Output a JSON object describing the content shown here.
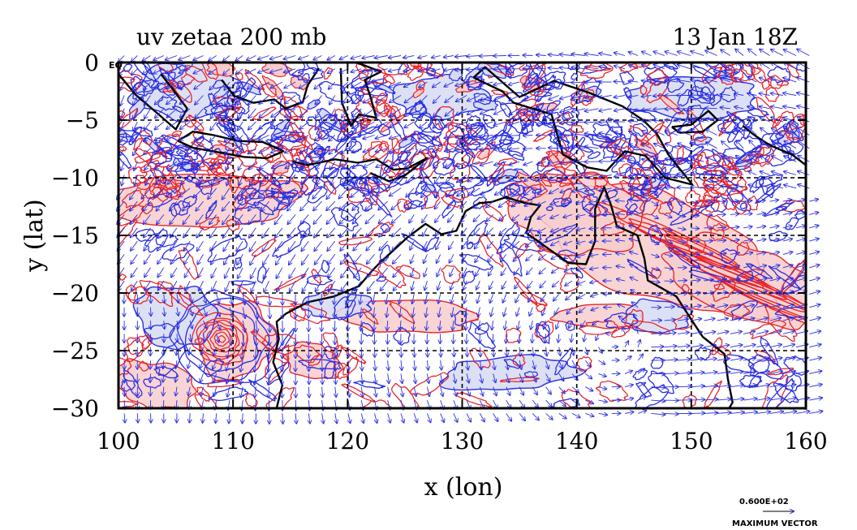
{
  "chart_data": {
    "type": "contour",
    "title": "uv zetaa 200 mb",
    "time_label": "13 Jan 18Z",
    "xlabel": "x (lon)",
    "ylabel": "y (lat)",
    "xlim": [
      100,
      160
    ],
    "ylim": [
      -30,
      0
    ],
    "x_ticks": [
      100,
      110,
      120,
      130,
      140,
      150,
      160
    ],
    "y_ticks": [
      0,
      -5,
      -10,
      -15,
      -20,
      -25,
      -30
    ],
    "x_tick_labels": [
      "100",
      "110",
      "120",
      "130",
      "140",
      "150",
      "160"
    ],
    "y_tick_labels": [
      "0",
      "−5",
      "−10",
      "−15",
      "−20",
      "−25",
      "−30"
    ],
    "grid": true,
    "grid_style": "dashed",
    "corner_label": "EQ",
    "vector_legend": {
      "value": "0.600E+02",
      "label": "MAXIMUM VECTOR"
    },
    "series": [
      {
        "field": "positive absolute vorticity contours",
        "color": "#e8262b",
        "fill": "#f7cccc"
      },
      {
        "field": "negative absolute vorticity contours",
        "color": "#2a2ee0",
        "fill": "#d6daf3"
      },
      {
        "field": "wind vectors",
        "color": "#2a2ee0"
      },
      {
        "field": "coastline",
        "color": "#000000"
      }
    ],
    "highlights": [
      {
        "name": "cyclonic vortex",
        "lon": 109.0,
        "lat": -24.0
      },
      {
        "name": "subtropical jet band",
        "lon_range": [
          147,
          160
        ],
        "lat_range": [
          -22,
          -12
        ]
      }
    ]
  }
}
